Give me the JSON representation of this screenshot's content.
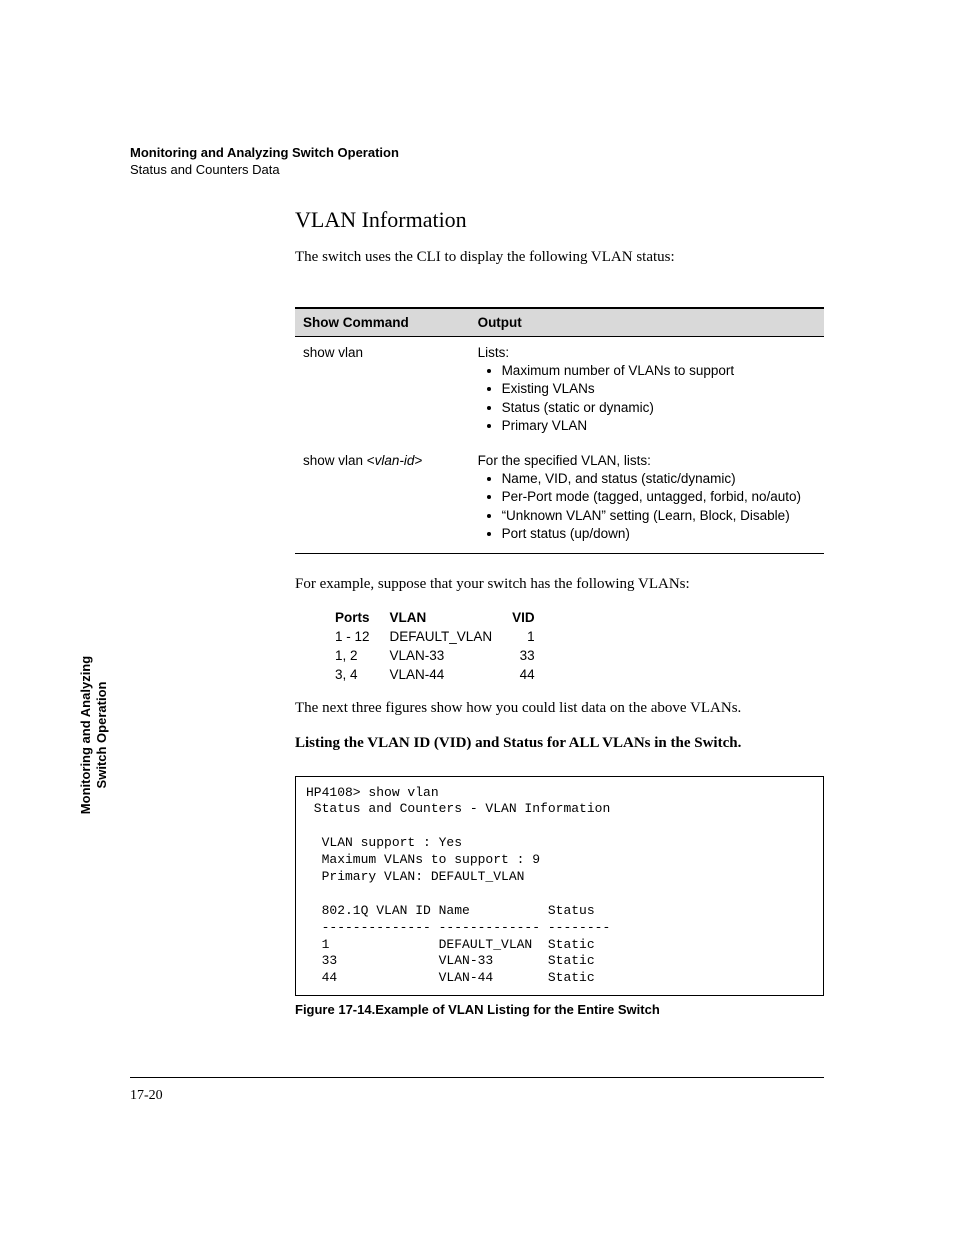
{
  "header": {
    "chapter": "Monitoring and Analyzing Switch Operation",
    "subsection": "Status and Counters Data"
  },
  "section_heading": "VLAN Information",
  "intro_text": "The switch uses the CLI to display the following VLAN status:",
  "cmd_table": {
    "headers": {
      "cmd": "Show Command",
      "out": "Output"
    },
    "row1": {
      "cmd": "show vlan",
      "lead": "Lists:",
      "b1": "Maximum number of VLANs to support",
      "b2": "Existing VLANs",
      "b3": "Status (static or dynamic)",
      "b4": "Primary VLAN"
    },
    "row2": {
      "cmd_prefix": "show vlan <",
      "cmd_italic": "vlan-id",
      "cmd_suffix": ">",
      "lead": "For the specified VLAN, lists:",
      "b1": "Name, VID, and status (static/dynamic)",
      "b2": "Per-Port mode (tagged, untagged, forbid, no/auto)",
      "b3": "“Unknown VLAN” setting (Learn, Block, Disable)",
      "b4": "Port status (up/down)"
    }
  },
  "example_text": "For example, suppose that your switch has the following VLANs:",
  "vlan_table": {
    "h_ports": "Ports",
    "h_vlan": "VLAN",
    "h_vid": "VID",
    "r1": {
      "ports": "1 - 12",
      "vlan": "DEFAULT_VLAN",
      "vid": "1"
    },
    "r2": {
      "ports": "1, 2",
      "vlan": "VLAN-33",
      "vid": "33"
    },
    "r3": {
      "ports": "3, 4",
      "vlan": "VLAN-44",
      "vid": "44"
    }
  },
  "next_text": "The next three figures show how you could list data on the above VLANs.",
  "listing_heading": "Listing the VLAN ID (VID) and Status for ALL VLANs in the Switch.",
  "cli_output": "HP4108> show vlan\n Status and Counters - VLAN Information\n\n  VLAN support : Yes\n  Maximum VLANs to support : 9\n  Primary VLAN: DEFAULT_VLAN\n\n  802.1Q VLAN ID Name          Status\n  -------------- ------------- --------\n  1              DEFAULT_VLAN  Static\n  33             VLAN-33       Static\n  44             VLAN-44       Static",
  "figure_caption": "Figure 17-14.Example of VLAN Listing for the Entire Switch",
  "side_tab": "Monitoring and Analyzing Switch Operation",
  "page_number": "17-20"
}
